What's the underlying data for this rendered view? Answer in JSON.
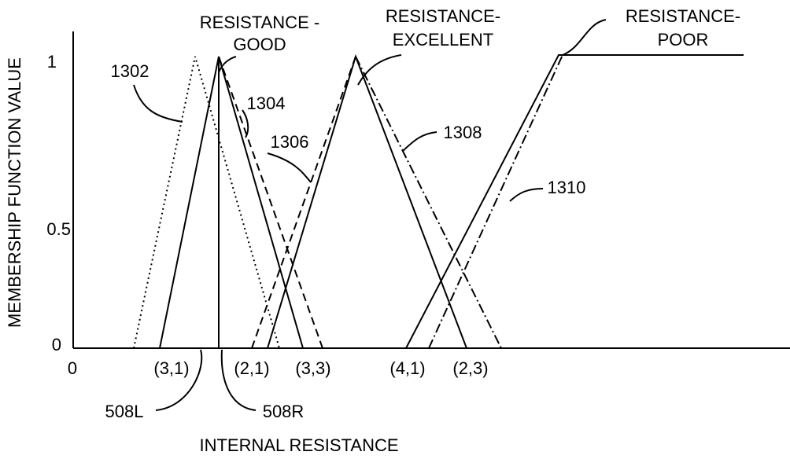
{
  "axes": {
    "y_label": "MEMBERSHIP FUNCTION VALUE",
    "x_label": "INTERNAL RESISTANCE",
    "y_ticks": [
      "1",
      "0.5",
      "0"
    ],
    "x_origin": "0"
  },
  "function_names": [
    {
      "line1": "RESISTANCE -",
      "line2": "GOOD"
    },
    {
      "line1": "RESISTANCE-",
      "line2": "EXCELLENT"
    },
    {
      "line1": "RESISTANCE-",
      "line2": "POOR"
    }
  ],
  "curve_labels": [
    "1302",
    "1304",
    "1306",
    "1308",
    "1310"
  ],
  "point_labels": [
    "(3,1)",
    "(2,1)",
    "(3,3)",
    "(4,1)",
    "(2,3)"
  ],
  "edge_labels": [
    "508L",
    "508R"
  ]
}
